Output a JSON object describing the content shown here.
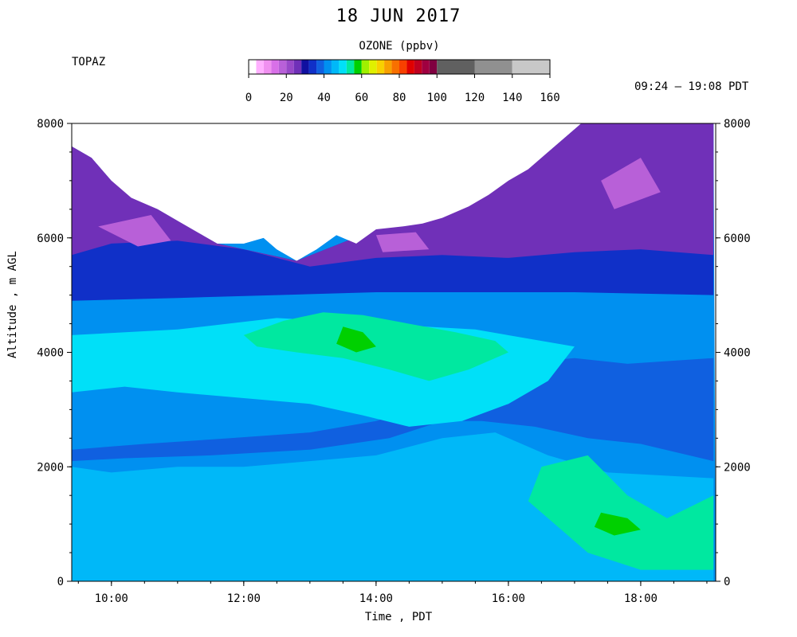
{
  "chart_data": {
    "type": "heatmap",
    "title": "18 JUN 2017",
    "site": "TOPAZ",
    "time_range": "09:24 – 19:08 PDT",
    "xlabel": "Time , PDT",
    "ylabel": "Altitude , m AGL",
    "x_range": [
      "09:24",
      "19:08"
    ],
    "x_ticks": [
      "10:00",
      "12:00",
      "14:00",
      "16:00",
      "18:00"
    ],
    "x_tick_hours": [
      10,
      12,
      14,
      16,
      18
    ],
    "ylim": [
      0,
      8000
    ],
    "y_ticks": [
      0,
      2000,
      4000,
      6000,
      8000
    ],
    "colorbar": {
      "title": "OZONE (ppbv)",
      "ticks": [
        0,
        20,
        40,
        60,
        80,
        100,
        120,
        140,
        160
      ],
      "range": [
        0,
        160
      ],
      "colors": [
        {
          "from": 0,
          "to": 4,
          "color": "#ffffff"
        },
        {
          "from": 4,
          "to": 8,
          "color": "#ffb0ff"
        },
        {
          "from": 8,
          "to": 12,
          "color": "#f090f0"
        },
        {
          "from": 12,
          "to": 16,
          "color": "#d870e8"
        },
        {
          "from": 16,
          "to": 20,
          "color": "#b860d8"
        },
        {
          "from": 20,
          "to": 24,
          "color": "#9848c8"
        },
        {
          "from": 24,
          "to": 28,
          "color": "#7030b8"
        },
        {
          "from": 28,
          "to": 32,
          "color": "#1010a0"
        },
        {
          "from": 32,
          "to": 36,
          "color": "#1030c8"
        },
        {
          "from": 36,
          "to": 40,
          "color": "#1060e0"
        },
        {
          "from": 40,
          "to": 44,
          "color": "#0090f0"
        },
        {
          "from": 44,
          "to": 48,
          "color": "#00b8f8"
        },
        {
          "from": 48,
          "to": 52,
          "color": "#00e0f8"
        },
        {
          "from": 52,
          "to": 56,
          "color": "#00e8a0"
        },
        {
          "from": 56,
          "to": 60,
          "color": "#00d000"
        },
        {
          "from": 60,
          "to": 64,
          "color": "#a0f000"
        },
        {
          "from": 64,
          "to": 68,
          "color": "#e0f000"
        },
        {
          "from": 68,
          "to": 72,
          "color": "#f8d000"
        },
        {
          "from": 72,
          "to": 76,
          "color": "#f8a000"
        },
        {
          "from": 76,
          "to": 80,
          "color": "#f87000"
        },
        {
          "from": 80,
          "to": 84,
          "color": "#f84000"
        },
        {
          "from": 84,
          "to": 88,
          "color": "#e00000"
        },
        {
          "from": 88,
          "to": 92,
          "color": "#c00020"
        },
        {
          "from": 92,
          "to": 96,
          "color": "#a00040"
        },
        {
          "from": 96,
          "to": 100,
          "color": "#800040"
        },
        {
          "from": 100,
          "to": 120,
          "color": "#606060"
        },
        {
          "from": 120,
          "to": 140,
          "color": "#909090"
        },
        {
          "from": 140,
          "to": 160,
          "color": "#c8c8c8"
        }
      ]
    },
    "data_top": {
      "description_units": "max altitude (m) with data vs time (h)",
      "points": [
        [
          9.4,
          7600
        ],
        [
          9.7,
          7400
        ],
        [
          10.0,
          7000
        ],
        [
          10.3,
          6700
        ],
        [
          10.7,
          6500
        ],
        [
          11.0,
          6300
        ],
        [
          11.3,
          6100
        ],
        [
          11.6,
          5900
        ],
        [
          12.0,
          5900
        ],
        [
          12.3,
          6000
        ],
        [
          12.5,
          5800
        ],
        [
          12.8,
          5600
        ],
        [
          13.1,
          5800
        ],
        [
          13.4,
          6050
        ],
        [
          13.7,
          5900
        ],
        [
          14.0,
          6150
        ],
        [
          14.4,
          6200
        ],
        [
          14.7,
          6250
        ],
        [
          15.0,
          6350
        ],
        [
          15.4,
          6550
        ],
        [
          15.7,
          6750
        ],
        [
          16.0,
          7000
        ],
        [
          16.3,
          7200
        ],
        [
          16.6,
          7500
        ],
        [
          16.9,
          7800
        ],
        [
          17.1,
          8000
        ],
        [
          19.1,
          8000
        ]
      ]
    },
    "layers": [
      {
        "ozone_ppbv": 44,
        "points": [
          [
            9.4,
            0
          ],
          [
            19.1,
            0
          ],
          [
            19.1,
            1800
          ],
          [
            17.5,
            1900
          ],
          [
            16.6,
            2200
          ],
          [
            15.8,
            2600
          ],
          [
            15.0,
            2500
          ],
          [
            14.0,
            2200
          ],
          [
            13.0,
            2100
          ],
          [
            12.0,
            2000
          ],
          [
            11.0,
            2000
          ],
          [
            10.0,
            1900
          ],
          [
            9.4,
            2000
          ]
        ]
      },
      {
        "ozone_ppbv": 36,
        "points": [
          [
            9.4,
            2300
          ],
          [
            10.5,
            2400
          ],
          [
            11.8,
            2500
          ],
          [
            13.0,
            2600
          ],
          [
            14.0,
            2800
          ],
          [
            14.8,
            3100
          ],
          [
            15.3,
            3600
          ],
          [
            16.0,
            3800
          ],
          [
            17.0,
            3900
          ],
          [
            17.8,
            3800
          ],
          [
            19.1,
            3900
          ],
          [
            19.1,
            2100
          ],
          [
            18.0,
            2400
          ],
          [
            17.2,
            2500
          ],
          [
            16.4,
            2700
          ],
          [
            15.6,
            2800
          ],
          [
            15.0,
            2800
          ],
          [
            14.2,
            2500
          ],
          [
            13.0,
            2300
          ],
          [
            11.5,
            2200
          ],
          [
            10.2,
            2150
          ],
          [
            9.4,
            2100
          ]
        ]
      },
      {
        "ozone_ppbv": 48,
        "points": [
          [
            9.4,
            4300
          ],
          [
            11.0,
            4400
          ],
          [
            12.5,
            4600
          ],
          [
            14.0,
            4500
          ],
          [
            15.5,
            4400
          ],
          [
            16.5,
            4200
          ],
          [
            17.0,
            4100
          ],
          [
            16.6,
            3500
          ],
          [
            16.0,
            3100
          ],
          [
            15.3,
            2800
          ],
          [
            14.5,
            2700
          ],
          [
            13.8,
            2900
          ],
          [
            13.0,
            3100
          ],
          [
            12.0,
            3200
          ],
          [
            11.0,
            3300
          ],
          [
            10.2,
            3400
          ],
          [
            9.4,
            3300
          ]
        ]
      },
      {
        "ozone_ppbv": 54,
        "points": [
          [
            12.0,
            4300
          ],
          [
            12.6,
            4550
          ],
          [
            13.2,
            4700
          ],
          [
            13.8,
            4650
          ],
          [
            14.5,
            4500
          ],
          [
            15.2,
            4350
          ],
          [
            15.8,
            4200
          ],
          [
            16.0,
            4000
          ],
          [
            15.4,
            3700
          ],
          [
            14.8,
            3500
          ],
          [
            14.2,
            3700
          ],
          [
            13.5,
            3900
          ],
          [
            12.8,
            4000
          ],
          [
            12.2,
            4100
          ]
        ]
      },
      {
        "ozone_ppbv": 58,
        "points": [
          [
            13.5,
            4450
          ],
          [
            13.8,
            4350
          ],
          [
            14.0,
            4100
          ],
          [
            13.7,
            4000
          ],
          [
            13.4,
            4150
          ]
        ]
      },
      {
        "ozone_ppbv": 54,
        "points": [
          [
            16.5,
            2000
          ],
          [
            17.2,
            2200
          ],
          [
            17.8,
            1500
          ],
          [
            18.4,
            1100
          ],
          [
            19.1,
            1500
          ],
          [
            19.1,
            200
          ],
          [
            18.0,
            200
          ],
          [
            17.2,
            500
          ],
          [
            16.8,
            900
          ],
          [
            16.3,
            1400
          ]
        ]
      },
      {
        "ozone_ppbv": 58,
        "points": [
          [
            17.4,
            1200
          ],
          [
            17.8,
            1100
          ],
          [
            18.0,
            900
          ],
          [
            17.6,
            800
          ],
          [
            17.3,
            950
          ]
        ]
      },
      {
        "ozone_ppbv": 32,
        "points": [
          [
            9.4,
            4900
          ],
          [
            11.0,
            4950
          ],
          [
            12.5,
            5000
          ],
          [
            14.0,
            5050
          ],
          [
            15.5,
            5050
          ],
          [
            17.0,
            5050
          ],
          [
            19.1,
            5000
          ],
          [
            19.1,
            8000
          ],
          [
            17.1,
            8000
          ],
          [
            16.6,
            7500
          ],
          [
            16.0,
            7000
          ],
          [
            15.0,
            6350
          ],
          [
            14.0,
            6150
          ],
          [
            12.8,
            5600
          ],
          [
            11.6,
            5900
          ],
          [
            10.7,
            6500
          ],
          [
            10.0,
            7000
          ],
          [
            9.7,
            7400
          ],
          [
            9.4,
            7600
          ]
        ]
      },
      {
        "ozone_ppbv": 24,
        "points": [
          [
            9.4,
            5700
          ],
          [
            10.0,
            5900
          ],
          [
            11.0,
            5950
          ],
          [
            12.0,
            5800
          ],
          [
            13.0,
            5500
          ],
          [
            14.0,
            5650
          ],
          [
            15.0,
            5700
          ],
          [
            16.0,
            5650
          ],
          [
            17.0,
            5750
          ],
          [
            18.0,
            5800
          ],
          [
            19.1,
            5700
          ],
          [
            19.1,
            8000
          ],
          [
            17.1,
            8000
          ],
          [
            16.6,
            7500
          ],
          [
            16.0,
            7000
          ],
          [
            15.0,
            6350
          ],
          [
            14.0,
            6150
          ],
          [
            12.8,
            5600
          ],
          [
            11.6,
            5900
          ],
          [
            10.7,
            6500
          ],
          [
            10.0,
            7000
          ],
          [
            9.7,
            7400
          ],
          [
            9.4,
            7600
          ]
        ]
      },
      {
        "ozone_ppbv": 16,
        "points": [
          [
            9.8,
            6200
          ],
          [
            10.6,
            6400
          ],
          [
            10.9,
            5950
          ],
          [
            10.4,
            5850
          ]
        ]
      },
      {
        "ozone_ppbv": 16,
        "points": [
          [
            14.0,
            6050
          ],
          [
            14.6,
            6100
          ],
          [
            14.8,
            5800
          ],
          [
            14.1,
            5750
          ]
        ]
      },
      {
        "ozone_ppbv": 16,
        "points": [
          [
            17.4,
            7000
          ],
          [
            18.0,
            7400
          ],
          [
            18.3,
            6800
          ],
          [
            17.6,
            6500
          ]
        ]
      }
    ]
  }
}
